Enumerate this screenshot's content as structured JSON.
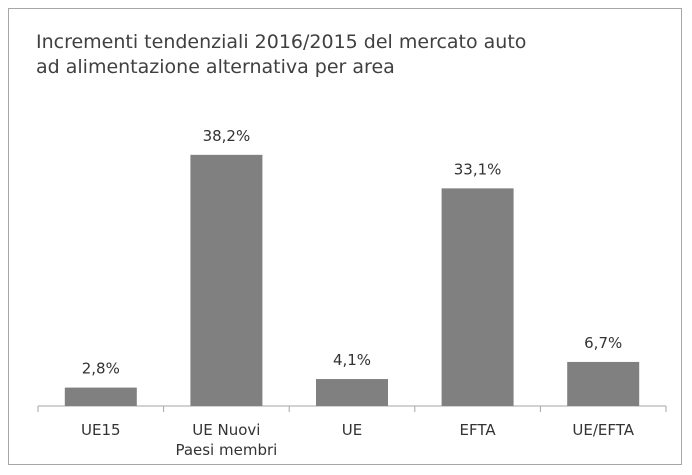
{
  "chart_data": {
    "type": "bar",
    "title": "Incrementi tendenziali 2016/2015 del mercato auto ad alimentazione alternativa per area",
    "categories": [
      "UE15",
      "UE Nuovi Paesi membri",
      "UE",
      "EFTA",
      "UE/EFTA"
    ],
    "values": [
      2.8,
      38.2,
      4.1,
      33.1,
      6.7
    ],
    "value_labels": [
      "2,8%",
      "38,2%",
      "4,1%",
      "33,1%",
      "6,7%"
    ],
    "color": "#808080",
    "ylim": [
      0,
      40
    ]
  }
}
